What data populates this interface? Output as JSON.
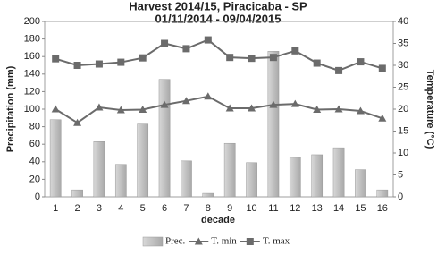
{
  "chart_data": {
    "type": "bar-line",
    "title": "Harvest 2014/15, Piracicaba - SP",
    "subtitle": "01/11/2014 - 09/04/2015",
    "x_label": "decade",
    "y_label": "Precipitation (mm)",
    "y2_label": "Temperature (°C)",
    "categories": [
      "1",
      "2",
      "3",
      "4",
      "5",
      "6",
      "7",
      "8",
      "9",
      "10",
      "11",
      "12",
      "13",
      "14",
      "15",
      "16"
    ],
    "series": [
      {
        "name": "Prec.",
        "type": "bar",
        "color": "#a9a9a9",
        "values": [
          88,
          8,
          63,
          37,
          83,
          134,
          41,
          4,
          61,
          39,
          166,
          45,
          48,
          56,
          31,
          8
        ]
      },
      {
        "name": "T. min",
        "type": "line",
        "marker": "triangle",
        "axis": "y2",
        "color": "#6b6b6b",
        "values": [
          20,
          16.9,
          20.4,
          19.8,
          19.9,
          21,
          21.9,
          22.9,
          20.2,
          20.2,
          21,
          21.2,
          19.9,
          20,
          19.6,
          17.9
        ]
      },
      {
        "name": "T. max",
        "type": "line",
        "marker": "square",
        "axis": "y2",
        "color": "#6b6b6b",
        "values": [
          31.5,
          30,
          30.3,
          30.7,
          31.7,
          35,
          33.8,
          35.8,
          31.8,
          31.6,
          31.8,
          33.3,
          30.5,
          28.8,
          30.8,
          29.3
        ]
      }
    ],
    "ylim": [
      0,
      200
    ],
    "yticks": [
      0,
      20,
      40,
      60,
      80,
      100,
      120,
      140,
      160,
      180,
      200
    ],
    "y2lim": [
      0,
      40
    ],
    "y2ticks": [
      0,
      5,
      10,
      15,
      20,
      25,
      30,
      35,
      40
    ],
    "grid": false,
    "legend": "bottom"
  }
}
